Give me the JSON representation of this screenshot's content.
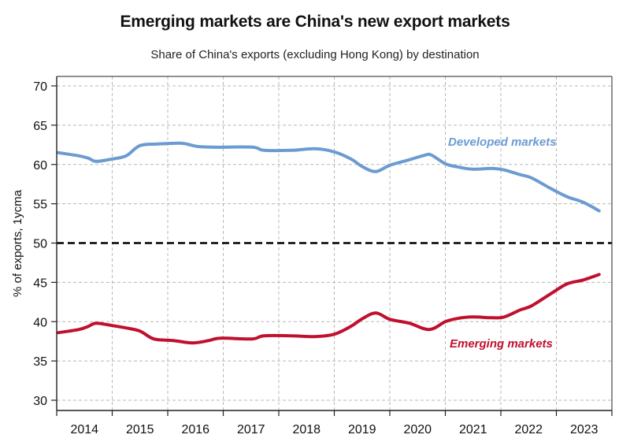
{
  "chart_data": {
    "type": "line",
    "title": "Emerging markets are China's new export markets",
    "subtitle": "Share of China's exports (excluding Hong Kong) by destination",
    "xlabel": "",
    "ylabel": "% of exports, 1ycma",
    "xlim": [
      2014.0,
      2024.0
    ],
    "ylim": [
      29,
      71
    ],
    "yticks": [
      30,
      35,
      40,
      45,
      50,
      55,
      60,
      65,
      70
    ],
    "xtick_labels": [
      "2014",
      "2015",
      "2016",
      "2017",
      "2018",
      "2019",
      "2020",
      "2021",
      "2022",
      "2023"
    ],
    "grid": true,
    "reference_line": {
      "y": 50,
      "style": "dashed",
      "color": "#000000"
    },
    "series": [
      {
        "name": "Developed markets",
        "color": "#6b9bd1",
        "label_position": "upper-right",
        "x": [
          2014.03,
          2014.4,
          2014.57,
          2014.71,
          2015.0,
          2015.25,
          2015.5,
          2015.82,
          2016.24,
          2016.53,
          2016.81,
          2017.52,
          2017.73,
          2018.23,
          2018.65,
          2019.0,
          2019.3,
          2019.51,
          2019.75,
          2020.0,
          2020.35,
          2020.64,
          2020.75,
          2021.0,
          2021.21,
          2021.49,
          2021.84,
          2022.06,
          2022.35,
          2022.55,
          2022.91,
          2023.19,
          2023.48,
          2023.77
        ],
        "values": [
          61.5,
          61.1,
          60.8,
          60.4,
          60.7,
          61.1,
          62.4,
          62.6,
          62.7,
          62.3,
          62.2,
          62.2,
          61.8,
          61.8,
          62.0,
          61.6,
          60.7,
          59.7,
          59.1,
          59.9,
          60.6,
          61.2,
          61.2,
          60.1,
          59.7,
          59.4,
          59.5,
          59.3,
          58.7,
          58.3,
          56.9,
          55.9,
          55.2,
          54.1
        ]
      },
      {
        "name": "Emerging markets",
        "color": "#c0102e",
        "label_position": "lower-right",
        "x": [
          2014.03,
          2014.4,
          2014.57,
          2014.71,
          2015.0,
          2015.25,
          2015.5,
          2015.75,
          2016.1,
          2016.45,
          2016.74,
          2016.95,
          2017.52,
          2017.73,
          2018.23,
          2018.65,
          2019.0,
          2019.3,
          2019.51,
          2019.75,
          2020.0,
          2020.35,
          2020.71,
          2021.0,
          2021.21,
          2021.49,
          2021.84,
          2022.06,
          2022.35,
          2022.55,
          2022.91,
          2023.19,
          2023.48,
          2023.77
        ],
        "values": [
          38.6,
          39.0,
          39.4,
          39.8,
          39.5,
          39.2,
          38.8,
          37.8,
          37.6,
          37.3,
          37.6,
          37.9,
          37.8,
          38.2,
          38.2,
          38.1,
          38.4,
          39.4,
          40.4,
          41.1,
          40.3,
          39.8,
          39.0,
          40.0,
          40.4,
          40.6,
          40.5,
          40.6,
          41.5,
          42.0,
          43.6,
          44.8,
          45.3,
          46.0
        ]
      }
    ]
  }
}
